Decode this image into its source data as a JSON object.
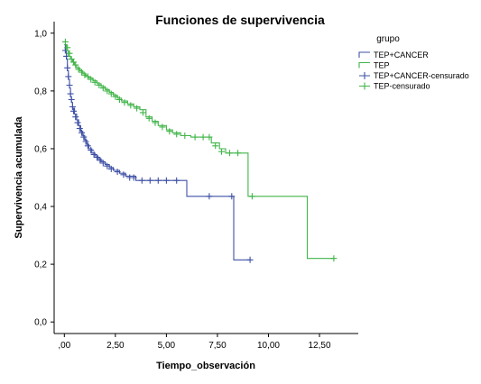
{
  "chart_data": {
    "type": "line",
    "title": "Funciones de supervivencia",
    "xlabel": "Tiempo_observación",
    "ylabel": "Supervivencia acumulada",
    "xlim": [
      -0.5,
      14.4
    ],
    "ylim": [
      -0.04,
      1.04
    ],
    "x_ticks": [
      0,
      2.5,
      5,
      7.5,
      10,
      12.5
    ],
    "x_tick_labels": [
      ",00",
      "2,50",
      "5,00",
      "7,50",
      "10,00",
      "12,50"
    ],
    "y_ticks": [
      0,
      0.2,
      0.4,
      0.6,
      0.8,
      1.0
    ],
    "y_tick_labels": [
      "0,0",
      "0,2",
      "0,4",
      "0,6",
      "0,8",
      "1,0"
    ],
    "grid": false,
    "legend": {
      "title": "grupo",
      "placement": "right",
      "entries": [
        {
          "label": "TEP+CANCER",
          "kind": "line",
          "color": "#3f51a5"
        },
        {
          "label": "TEP",
          "kind": "line",
          "color": "#41b549"
        },
        {
          "label": "TEP+CANCER-censurado",
          "kind": "cross",
          "color": "#3f51a5"
        },
        {
          "label": "TEP-censurado",
          "kind": "cross",
          "color": "#41b549"
        }
      ]
    },
    "series": [
      {
        "name": "TEP+CANCER",
        "color": "#3f51a5",
        "steps": [
          [
            0,
            0.96
          ],
          [
            0.05,
            0.94
          ],
          [
            0.1,
            0.91
          ],
          [
            0.15,
            0.87
          ],
          [
            0.2,
            0.84
          ],
          [
            0.25,
            0.81
          ],
          [
            0.3,
            0.78
          ],
          [
            0.35,
            0.76
          ],
          [
            0.4,
            0.74
          ],
          [
            0.5,
            0.72
          ],
          [
            0.6,
            0.7
          ],
          [
            0.7,
            0.68
          ],
          [
            0.8,
            0.66
          ],
          [
            0.9,
            0.645
          ],
          [
            1.0,
            0.63
          ],
          [
            1.1,
            0.615
          ],
          [
            1.2,
            0.6
          ],
          [
            1.35,
            0.585
          ],
          [
            1.5,
            0.575
          ],
          [
            1.65,
            0.565
          ],
          [
            1.8,
            0.555
          ],
          [
            2.0,
            0.545
          ],
          [
            2.2,
            0.535
          ],
          [
            2.4,
            0.525
          ],
          [
            2.7,
            0.515
          ],
          [
            3.0,
            0.505
          ],
          [
            3.5,
            0.49
          ],
          [
            6.0,
            0.435
          ],
          [
            8.3,
            0.215
          ]
        ],
        "end_x": 9.1,
        "censored": [
          [
            0.05,
            0.94
          ],
          [
            0.1,
            0.92
          ],
          [
            0.15,
            0.88
          ],
          [
            0.2,
            0.85
          ],
          [
            0.25,
            0.82
          ],
          [
            0.3,
            0.79
          ],
          [
            0.35,
            0.77
          ],
          [
            0.4,
            0.745
          ],
          [
            0.45,
            0.73
          ],
          [
            0.55,
            0.71
          ],
          [
            0.65,
            0.69
          ],
          [
            0.75,
            0.67
          ],
          [
            0.85,
            0.655
          ],
          [
            0.95,
            0.64
          ],
          [
            1.05,
            0.625
          ],
          [
            1.15,
            0.61
          ],
          [
            1.3,
            0.595
          ],
          [
            1.45,
            0.58
          ],
          [
            1.6,
            0.57
          ],
          [
            1.75,
            0.56
          ],
          [
            1.9,
            0.55
          ],
          [
            2.1,
            0.54
          ],
          [
            2.3,
            0.53
          ],
          [
            2.6,
            0.52
          ],
          [
            2.9,
            0.51
          ],
          [
            3.2,
            0.5
          ],
          [
            3.4,
            0.5
          ],
          [
            3.8,
            0.49
          ],
          [
            4.2,
            0.49
          ],
          [
            4.6,
            0.49
          ],
          [
            5.0,
            0.49
          ],
          [
            5.5,
            0.49
          ],
          [
            7.1,
            0.435
          ],
          [
            8.2,
            0.435
          ],
          [
            9.1,
            0.215
          ]
        ]
      },
      {
        "name": "TEP",
        "color": "#41b549",
        "steps": [
          [
            0,
            0.96
          ],
          [
            0.1,
            0.94
          ],
          [
            0.2,
            0.92
          ],
          [
            0.3,
            0.91
          ],
          [
            0.4,
            0.9
          ],
          [
            0.5,
            0.89
          ],
          [
            0.6,
            0.88
          ],
          [
            0.75,
            0.87
          ],
          [
            0.9,
            0.86
          ],
          [
            1.05,
            0.85
          ],
          [
            1.2,
            0.845
          ],
          [
            1.4,
            0.835
          ],
          [
            1.6,
            0.825
          ],
          [
            1.8,
            0.815
          ],
          [
            2.0,
            0.805
          ],
          [
            2.2,
            0.795
          ],
          [
            2.4,
            0.785
          ],
          [
            2.6,
            0.775
          ],
          [
            2.8,
            0.765
          ],
          [
            3.1,
            0.755
          ],
          [
            3.4,
            0.745
          ],
          [
            3.7,
            0.735
          ],
          [
            4.0,
            0.71
          ],
          [
            4.3,
            0.695
          ],
          [
            4.6,
            0.68
          ],
          [
            5.0,
            0.665
          ],
          [
            5.3,
            0.655
          ],
          [
            5.7,
            0.645
          ],
          [
            6.2,
            0.64
          ],
          [
            7.2,
            0.62
          ],
          [
            7.6,
            0.6
          ],
          [
            7.9,
            0.585
          ],
          [
            9.0,
            0.435
          ],
          [
            11.9,
            0.22
          ]
        ],
        "end_x": 13.2,
        "censored": [
          [
            0.05,
            0.97
          ],
          [
            0.15,
            0.95
          ],
          [
            0.25,
            0.93
          ],
          [
            0.35,
            0.91
          ],
          [
            0.45,
            0.9
          ],
          [
            0.55,
            0.89
          ],
          [
            0.7,
            0.875
          ],
          [
            0.85,
            0.865
          ],
          [
            1.0,
            0.855
          ],
          [
            1.15,
            0.85
          ],
          [
            1.3,
            0.84
          ],
          [
            1.5,
            0.83
          ],
          [
            1.7,
            0.82
          ],
          [
            1.9,
            0.81
          ],
          [
            2.1,
            0.8
          ],
          [
            2.3,
            0.79
          ],
          [
            2.5,
            0.78
          ],
          [
            2.7,
            0.77
          ],
          [
            2.95,
            0.76
          ],
          [
            3.25,
            0.75
          ],
          [
            3.55,
            0.74
          ],
          [
            3.85,
            0.725
          ],
          [
            4.15,
            0.705
          ],
          [
            4.45,
            0.69
          ],
          [
            4.8,
            0.675
          ],
          [
            5.15,
            0.66
          ],
          [
            5.5,
            0.65
          ],
          [
            5.9,
            0.645
          ],
          [
            6.4,
            0.64
          ],
          [
            6.8,
            0.64
          ],
          [
            7.1,
            0.64
          ],
          [
            7.4,
            0.61
          ],
          [
            7.7,
            0.59
          ],
          [
            8.1,
            0.585
          ],
          [
            8.5,
            0.585
          ],
          [
            9.2,
            0.435
          ],
          [
            13.2,
            0.22
          ]
        ]
      }
    ]
  }
}
